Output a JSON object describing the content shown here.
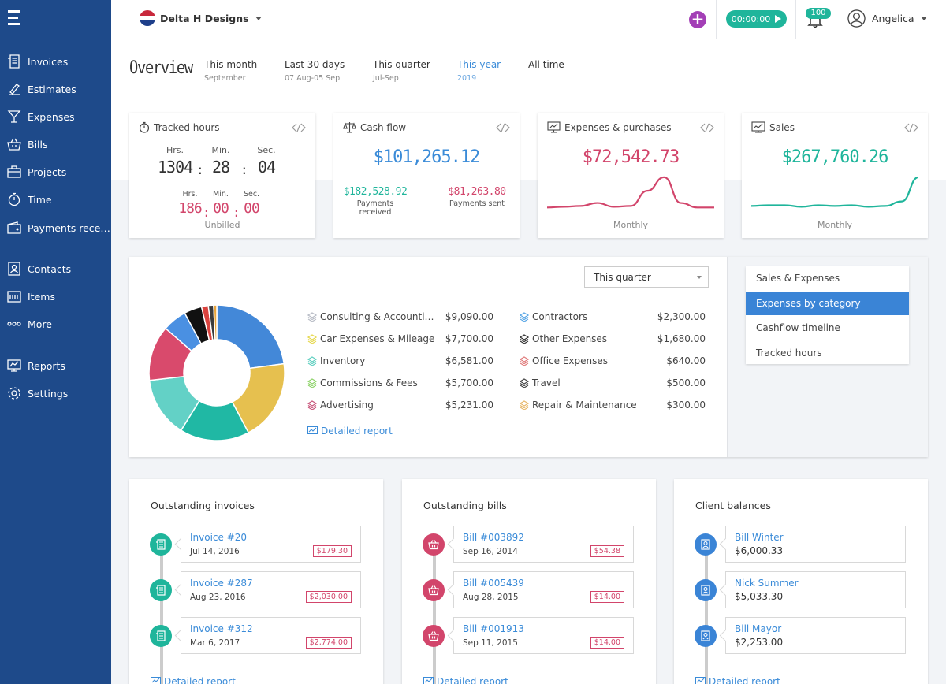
{
  "sidebar": {
    "items": [
      {
        "label": "Invoices",
        "icon": "invoice-icon"
      },
      {
        "label": "Estimates",
        "icon": "estimate-icon"
      },
      {
        "label": "Expenses",
        "icon": "glass-icon"
      },
      {
        "label": "Bills",
        "icon": "basket-icon"
      },
      {
        "label": "Projects",
        "icon": "briefcase-icon"
      },
      {
        "label": "Time",
        "icon": "stopwatch-icon"
      },
      {
        "label": "Payments rece…",
        "icon": "wallet-icon"
      },
      {
        "label": "Contacts",
        "icon": "contacts-icon"
      },
      {
        "label": "Items",
        "icon": "items-icon"
      },
      {
        "label": "More",
        "icon": "dots-icon"
      },
      {
        "label": "Reports",
        "icon": "reports-icon"
      },
      {
        "label": "Settings",
        "icon": "gear-icon"
      }
    ]
  },
  "header": {
    "company": "Delta H Designs",
    "timer": "00:00:00",
    "notifications": "100",
    "user": "Angelica"
  },
  "overview": {
    "title": "Overview",
    "periods": [
      {
        "label": "This month",
        "sub": "September"
      },
      {
        "label": "Last 30 days",
        "sub": "07 Aug-05 Sep"
      },
      {
        "label": "This quarter",
        "sub": "Jul-Sep"
      },
      {
        "label": "This year",
        "sub": "2019"
      },
      {
        "label": "All time",
        "sub": ""
      }
    ],
    "active_period": "This year"
  },
  "tracked_hours": {
    "title": "Tracked hours",
    "hrs_label": "Hrs.",
    "min_label": "Min.",
    "sec_label": "Sec.",
    "hrs": "1304",
    "min": "28",
    "sec": "04",
    "unbilled_hrs": "186",
    "unbilled_min": "00",
    "unbilled_sec": "00",
    "unbilled_label": "Unbilled"
  },
  "cash_flow": {
    "title": "Cash flow",
    "total": "$101,265.12",
    "received": "$182,528.92",
    "received_label": "Payments received",
    "sent": "$81,263.80",
    "sent_label": "Payments sent"
  },
  "expenses_purchases": {
    "title": "Expenses & purchases",
    "total": "$72,542.73",
    "period_label": "Monthly",
    "trend": [
      0.4,
      0.45,
      0.5,
      0.7,
      0.45,
      0.5,
      1.5,
      2.4,
      0.7,
      0.4,
      0.4
    ],
    "color": "#d2456b"
  },
  "sales": {
    "title": "Sales",
    "total": "$267,760.26",
    "period_label": "Monthly",
    "trend": [
      0.5,
      0.55,
      0.55,
      0.45,
      0.55,
      0.5,
      0.55,
      0.45,
      0.5,
      0.8,
      2.4
    ],
    "color": "#1fb59b"
  },
  "categories": {
    "select_value": "This quarter",
    "tabs": [
      "Sales & Expenses",
      "Expenses by category",
      "Cashflow timeline",
      "Tracked hours"
    ],
    "active_tab": "Expenses by category",
    "items": [
      {
        "name": "Consulting & Accounti…",
        "amount": "$9,090.00",
        "value": 9090,
        "color": "#4388d8",
        "icon_color": "#b8bcc6"
      },
      {
        "name": "Car Expenses & Mileage",
        "amount": "$7,700.00",
        "value": 7700,
        "color": "#e6c04f",
        "icon_color": "#e6d84f"
      },
      {
        "name": "Inventory",
        "amount": "$6,581.00",
        "value": 6581,
        "color": "#20b8a4",
        "icon_color": "#5ecfc0"
      },
      {
        "name": "Commissions & Fees",
        "amount": "$5,700.00",
        "value": 5700,
        "color": "#63d1c6",
        "icon_color": "#8ed36a"
      },
      {
        "name": "Advertising",
        "amount": "$5,231.00",
        "value": 5231,
        "color": "#d94a6c",
        "icon_color": "#c8557a"
      },
      {
        "name": "Contractors",
        "amount": "$2,300.00",
        "value": 2300,
        "color": "#4a90e2",
        "icon_color": "#5aa7e6"
      },
      {
        "name": "Other Expenses",
        "amount": "$1,680.00",
        "value": 1680,
        "color": "#111111",
        "icon_color": "#333333"
      },
      {
        "name": "Office Expenses",
        "amount": "$640.00",
        "value": 640,
        "color": "#d9433f",
        "icon_color": "#e07b7b"
      },
      {
        "name": "Travel",
        "amount": "$500.00",
        "value": 500,
        "color": "#3a3a3a",
        "icon_color": "#444444"
      },
      {
        "name": "Repair & Maintenance",
        "amount": "$300.00",
        "value": 300,
        "color": "#e8a53c",
        "icon_color": "#e8b86a"
      }
    ],
    "detail_link": "Detailed report"
  },
  "outstanding_invoices": {
    "title": "Outstanding invoices",
    "items": [
      {
        "name": "Invoice #20",
        "date": "Jul 14, 2016",
        "amount": "$179.30"
      },
      {
        "name": "Invoice #287",
        "date": "Aug 23, 2016",
        "amount": "$2,030.00"
      },
      {
        "name": "Invoice #312",
        "date": "Mar 6, 2017",
        "amount": "$2,774.00"
      }
    ],
    "link": "Detailed report"
  },
  "outstanding_bills": {
    "title": "Outstanding bills",
    "items": [
      {
        "name": "Bill #003892",
        "date": "Sep 16, 2014",
        "amount": "$54.38"
      },
      {
        "name": "Bill #005439",
        "date": "Aug 28, 2015",
        "amount": "$14.00"
      },
      {
        "name": "Bill #001913",
        "date": "Sep 11, 2015",
        "amount": "$14.00"
      }
    ],
    "link": "Detailed report"
  },
  "client_balances": {
    "title": "Client balances",
    "items": [
      {
        "name": "Bill Winter",
        "balance": "$6,000.33"
      },
      {
        "name": "Nick Summer",
        "balance": "$5,033.30"
      },
      {
        "name": "Bill Mayor",
        "balance": "$2,253.00"
      }
    ],
    "link": "Detailed report"
  }
}
